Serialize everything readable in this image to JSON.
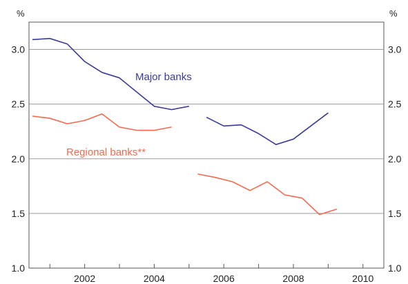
{
  "chart_data": {
    "type": "line",
    "y_unit_left": "%",
    "y_unit_right": "%",
    "ylim": [
      1.0,
      3.25
    ],
    "xlim": [
      2000.4,
      2010.6
    ],
    "y_ticks": [
      "1.0",
      "1.5",
      "2.0",
      "2.5",
      "3.0"
    ],
    "x_ticks": [
      "2002",
      "2004",
      "2006",
      "2008",
      "2010"
    ],
    "grid": true,
    "series": [
      {
        "name": "Major banks",
        "color": "#3a3a9c",
        "segments": [
          [
            {
              "x": 2000.5,
              "y": 3.09
            },
            {
              "x": 2001.0,
              "y": 3.1
            },
            {
              "x": 2001.5,
              "y": 3.05
            },
            {
              "x": 2002.0,
              "y": 2.89
            },
            {
              "x": 2002.5,
              "y": 2.79
            },
            {
              "x": 2003.0,
              "y": 2.74
            },
            {
              "x": 2003.5,
              "y": 2.61
            },
            {
              "x": 2004.0,
              "y": 2.48
            },
            {
              "x": 2004.5,
              "y": 2.45
            },
            {
              "x": 2005.0,
              "y": 2.48
            }
          ],
          [
            {
              "x": 2005.5,
              "y": 2.38
            },
            {
              "x": 2006.0,
              "y": 2.3
            },
            {
              "x": 2006.5,
              "y": 2.31
            },
            {
              "x": 2007.0,
              "y": 2.23
            },
            {
              "x": 2007.5,
              "y": 2.13
            },
            {
              "x": 2008.0,
              "y": 2.18
            },
            {
              "x": 2008.5,
              "y": 2.3
            },
            {
              "x": 2009.0,
              "y": 2.42
            }
          ]
        ]
      },
      {
        "name": "Regional banks**",
        "color": "#f26a4f",
        "segments": [
          [
            {
              "x": 2000.5,
              "y": 2.39
            },
            {
              "x": 2001.0,
              "y": 2.37
            },
            {
              "x": 2001.5,
              "y": 2.32
            },
            {
              "x": 2002.0,
              "y": 2.35
            },
            {
              "x": 2002.5,
              "y": 2.41
            },
            {
              "x": 2003.0,
              "y": 2.29
            },
            {
              "x": 2003.5,
              "y": 2.26
            },
            {
              "x": 2004.0,
              "y": 2.26
            },
            {
              "x": 2004.5,
              "y": 2.29
            }
          ],
          [
            {
              "x": 2005.25,
              "y": 1.86
            },
            {
              "x": 2005.75,
              "y": 1.83
            },
            {
              "x": 2006.25,
              "y": 1.79
            },
            {
              "x": 2006.75,
              "y": 1.71
            },
            {
              "x": 2007.25,
              "y": 1.79
            },
            {
              "x": 2007.75,
              "y": 1.67
            },
            {
              "x": 2008.25,
              "y": 1.64
            },
            {
              "x": 2008.75,
              "y": 1.49
            },
            {
              "x": 2009.25,
              "y": 1.54
            }
          ]
        ]
      }
    ]
  }
}
